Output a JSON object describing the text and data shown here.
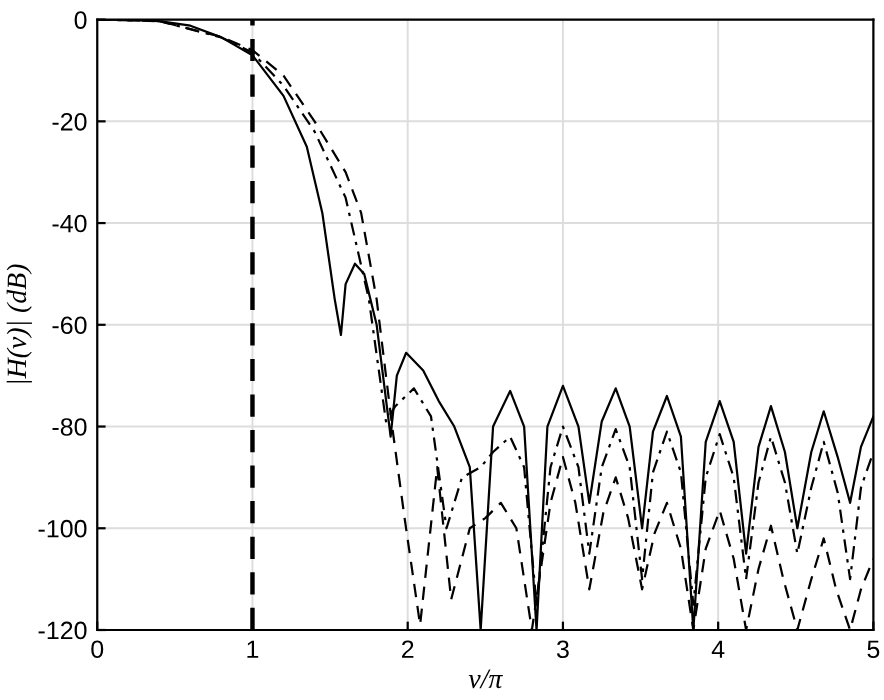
{
  "chart_data": {
    "type": "line",
    "xlabel": "v/π",
    "ylabel": "|H(v)| (dB)",
    "xlim": [
      0,
      5
    ],
    "ylim": [
      -120,
      0
    ],
    "xticks": [
      0,
      1,
      2,
      3,
      4,
      5
    ],
    "yticks": [
      -120,
      -100,
      -80,
      -60,
      -40,
      -20,
      0
    ],
    "grid": true,
    "ref_lines": [
      {
        "axis": "x",
        "value": 1,
        "color": "#000000",
        "line_style": "dashed"
      }
    ],
    "series": [
      {
        "color": "#000000",
        "line_style": "solid",
        "x": [
          0,
          0.2,
          0.4,
          0.6,
          0.8,
          1.0,
          1.2,
          1.35,
          1.45,
          1.53,
          1.57,
          1.6,
          1.66,
          1.72,
          1.8,
          1.89,
          1.93,
          1.99,
          2.1,
          2.2,
          2.3,
          2.4,
          2.47,
          2.55,
          2.66,
          2.75,
          2.83,
          2.9,
          3.0,
          3.1,
          3.17,
          3.25,
          3.34,
          3.43,
          3.51,
          3.58,
          3.67,
          3.76,
          3.84,
          3.92,
          4.01,
          4.1,
          4.18,
          4.26,
          4.34,
          4.43,
          4.51,
          4.6,
          4.68,
          4.77,
          4.85,
          4.92,
          5.0
        ],
        "values": [
          0,
          0,
          -0.3,
          -1.2,
          -3.5,
          -7,
          -15,
          -25,
          -38,
          -55,
          -62,
          -52,
          -48,
          -50,
          -60,
          -82,
          -70,
          -65.5,
          -69,
          -75,
          -80,
          -88,
          -120,
          -80,
          -73,
          -80,
          -120,
          -80,
          -72,
          -80,
          -95,
          -79,
          -72.5,
          -80,
          -100,
          -81,
          -74,
          -82,
          -120,
          -83,
          -75,
          -83,
          -105,
          -84,
          -76,
          -85,
          -100,
          -85,
          -77,
          -86,
          -95,
          -84,
          -78
        ]
      },
      {
        "color": "#000000",
        "line_style": "dashdot",
        "x": [
          0,
          0.4,
          0.8,
          1.0,
          1.2,
          1.4,
          1.6,
          1.75,
          1.86,
          1.92,
          2.04,
          2.15,
          2.25,
          2.35,
          2.47,
          2.55,
          2.66,
          2.75,
          2.83,
          2.92,
          3.0,
          3.1,
          3.17,
          3.25,
          3.34,
          3.43,
          3.51,
          3.58,
          3.67,
          3.76,
          3.84,
          3.92,
          4.01,
          4.1,
          4.18,
          4.26,
          4.34,
          4.43,
          4.51,
          4.6,
          4.68,
          4.77,
          4.85,
          4.92,
          5.0
        ],
        "values": [
          0,
          -0.3,
          -3.5,
          -6.5,
          -13,
          -22,
          -35,
          -55,
          -79,
          -76,
          -72.5,
          -78,
          -100,
          -90,
          -88,
          -85,
          -82,
          -88,
          -115,
          -88,
          -80,
          -88,
          -105,
          -88,
          -80.5,
          -88,
          -110,
          -89,
          -81,
          -89,
          -115,
          -90,
          -81.5,
          -90,
          -110,
          -91,
          -82,
          -91,
          -105,
          -92,
          -83,
          -93,
          -110,
          -92,
          -85
        ]
      },
      {
        "color": "#000000",
        "line_style": "dashed",
        "x": [
          0,
          0.4,
          0.8,
          1.0,
          1.2,
          1.4,
          1.6,
          1.7,
          1.8,
          1.9,
          1.98,
          2.08,
          2.19,
          2.28,
          2.4,
          2.5,
          2.6,
          2.7,
          2.8,
          2.92,
          3.0,
          3.08,
          3.17,
          3.26,
          3.34,
          3.42,
          3.51,
          3.59,
          3.67,
          3.76,
          3.84,
          3.92,
          4.01,
          4.1,
          4.18,
          4.26,
          4.34,
          4.42,
          4.51,
          4.6,
          4.68,
          4.76,
          4.85,
          4.92,
          5.0
        ],
        "values": [
          0,
          -0.3,
          -3.4,
          -6,
          -11,
          -20,
          -30,
          -38,
          -55,
          -80,
          -98,
          -119,
          -88,
          -114,
          -100,
          -98,
          -95,
          -100,
          -120,
          -95,
          -86,
          -95,
          -112,
          -97,
          -90,
          -98,
          -112,
          -101,
          -95,
          -104,
          -120,
          -104,
          -96.5,
          -106,
          -120,
          -108,
          -99.5,
          -110,
          -120,
          -110,
          -102,
          -112,
          -120,
          -112,
          -106
        ]
      }
    ]
  }
}
